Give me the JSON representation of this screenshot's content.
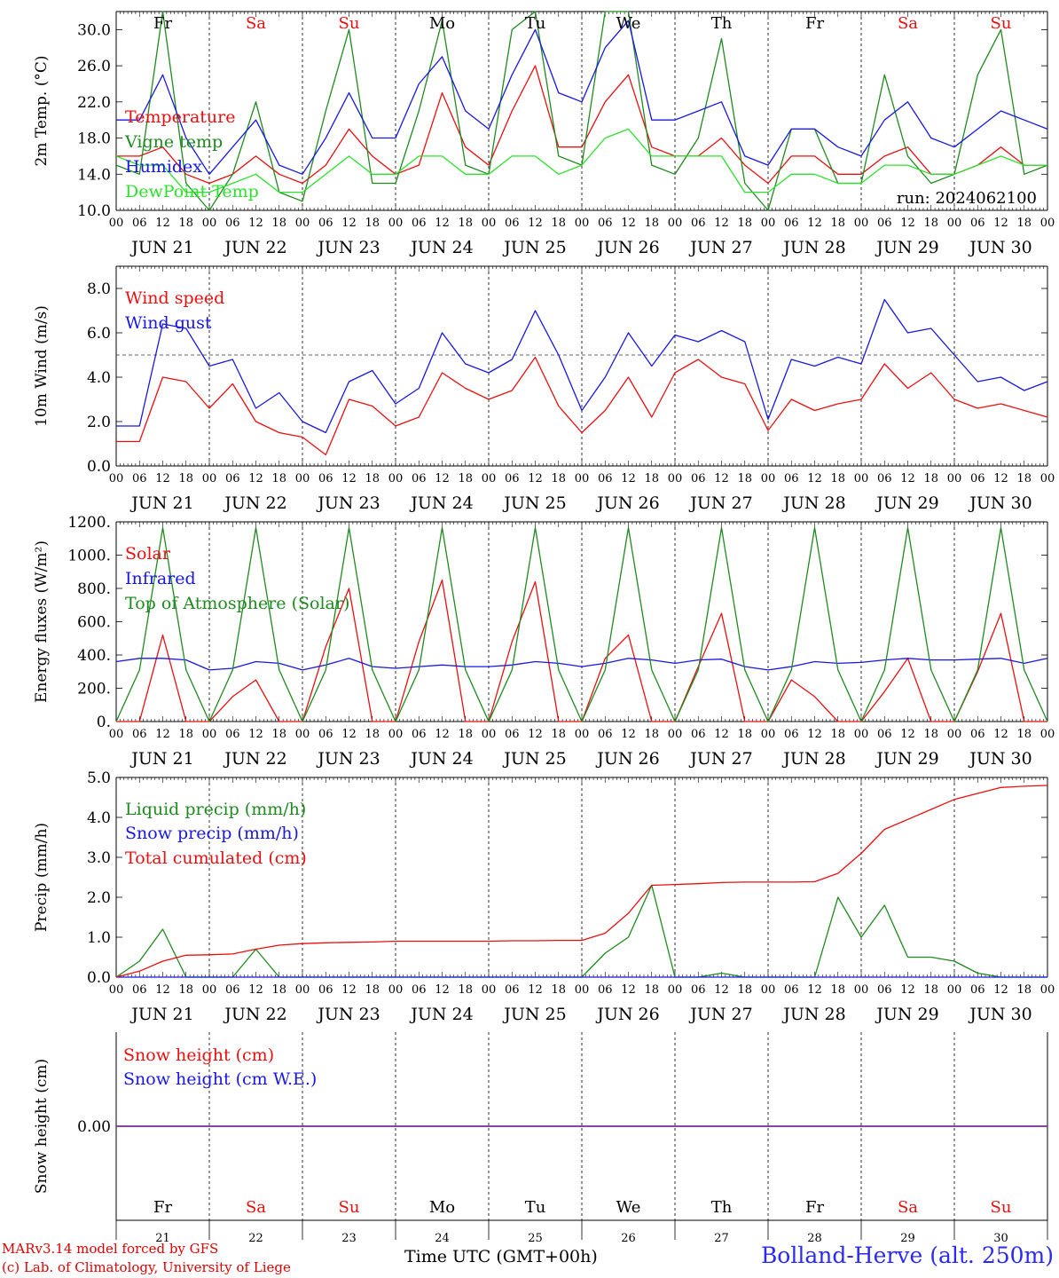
{
  "colors": {
    "red": "#e81010",
    "green": "#1f8a1f",
    "blue": "#1818e0",
    "lightgreen": "#2ee02e",
    "purple": "#7a2a9a",
    "weekend": "#e81010",
    "weekday": "#000000"
  },
  "days": {
    "top_labels": [
      "Fr",
      "Sa",
      "Su",
      "Mo",
      "Tu",
      "We",
      "Th",
      "Fr",
      "Sa",
      "Su"
    ],
    "dates": [
      "JUN 21",
      "JUN 22",
      "JUN 23",
      "JUN 24",
      "JUN 25",
      "JUN 26",
      "JUN 27",
      "JUN 28",
      "JUN 29",
      "JUN 30"
    ],
    "day_numbers": [
      "21",
      "22",
      "23",
      "24",
      "25",
      "26",
      "27",
      "28",
      "29",
      "30"
    ],
    "weekend": [
      false,
      true,
      true,
      false,
      false,
      false,
      false,
      false,
      true,
      true
    ],
    "hour_ticks": [
      "00",
      "06",
      "12",
      "18"
    ],
    "end_tick": "00"
  },
  "footer": {
    "credit_line1": "MARv3.14 model forced by GFS",
    "credit_line2": "(c) Lab. of Climatology, University of Liege",
    "time_axis_label": "Time UTC (GMT+00h)",
    "station": "Bolland-Herve (alt. 250m)"
  },
  "chart_data": [
    {
      "type": "line",
      "ylabel": "2m Temp. (°C)",
      "ylim": [
        10,
        32
      ],
      "yticks": [
        "10.0",
        "14.0",
        "18.0",
        "22.0",
        "26.0",
        "30.0"
      ],
      "annotation": "run: 2024062100",
      "x": "hours since Jun 21 00 UTC, every 6h",
      "series": [
        {
          "name": "Temperature",
          "color": "red",
          "values": [
            16,
            16,
            17,
            14,
            13,
            14,
            16,
            14,
            13,
            15,
            19,
            16,
            14,
            15,
            23,
            17,
            15,
            21,
            26,
            17,
            17,
            22,
            25,
            17,
            16,
            16,
            18,
            15,
            13,
            16,
            16,
            14,
            14,
            16,
            17,
            14,
            14,
            15,
            17,
            15,
            15
          ]
        },
        {
          "name": "Vigne temp",
          "color": "green",
          "values": [
            15,
            14,
            32,
            13,
            10,
            14,
            22,
            12,
            11,
            21,
            30,
            13,
            13,
            21,
            31,
            15,
            14,
            30,
            32,
            16,
            15,
            32,
            32,
            15,
            14,
            18,
            29,
            13,
            10,
            19,
            19,
            13,
            13,
            25,
            16,
            13,
            14,
            25,
            30,
            14,
            15
          ]
        },
        {
          "name": "Humidex",
          "color": "blue",
          "values": [
            20,
            20,
            25,
            18,
            14,
            17,
            20,
            15,
            14,
            18,
            23,
            18,
            18,
            24,
            27,
            21,
            19,
            25,
            30,
            23,
            22,
            28,
            31,
            20,
            20,
            21,
            22,
            16,
            15,
            19,
            19,
            17,
            16,
            20,
            22,
            18,
            17,
            19,
            21,
            20,
            19
          ]
        },
        {
          "name": "DewPoint Temp",
          "color": "lightgreen",
          "values": [
            16,
            15,
            15,
            12,
            12,
            13,
            14,
            12,
            12,
            14,
            16,
            14,
            14,
            16,
            16,
            14,
            14,
            16,
            16,
            14,
            15,
            18,
            19,
            16,
            16,
            16,
            16,
            12,
            12,
            14,
            14,
            13,
            13,
            15,
            15,
            14,
            14,
            15,
            16,
            15,
            15
          ]
        }
      ]
    },
    {
      "type": "line",
      "ylabel": "10m Wind (m/s)",
      "ylim": [
        0,
        9
      ],
      "yticks": [
        "0.0",
        "2.0",
        "4.0",
        "6.0",
        "8.0"
      ],
      "dashed_line": 5.0,
      "series": [
        {
          "name": "Wind speed",
          "color": "red",
          "values": [
            1.1,
            1.1,
            4.0,
            3.8,
            2.6,
            3.7,
            2.0,
            1.5,
            1.3,
            0.5,
            3.0,
            2.7,
            1.8,
            2.2,
            4.2,
            3.5,
            3.0,
            3.4,
            4.9,
            2.7,
            1.5,
            2.5,
            4.0,
            2.2,
            4.2,
            4.8,
            4.0,
            3.7,
            1.6,
            3.0,
            2.5,
            2.8,
            3.0,
            4.6,
            3.5,
            4.2,
            3.0,
            2.6,
            2.8,
            2.5,
            2.2
          ]
        },
        {
          "name": "Wind gust",
          "color": "blue",
          "values": [
            1.8,
            1.8,
            6.4,
            6.2,
            4.5,
            4.8,
            2.6,
            3.3,
            2.0,
            1.5,
            3.8,
            4.3,
            2.8,
            3.5,
            6.0,
            4.6,
            4.2,
            4.8,
            7.0,
            5.0,
            2.5,
            4.0,
            6.0,
            4.5,
            5.9,
            5.6,
            6.1,
            5.6,
            2.1,
            4.8,
            4.5,
            4.9,
            4.6,
            7.5,
            6.0,
            6.2,
            5.0,
            3.8,
            4.0,
            3.4,
            3.8
          ]
        }
      ]
    },
    {
      "type": "line",
      "ylabel": "Energy fluxes (W/m²)",
      "ylim": [
        0,
        1200
      ],
      "yticks": [
        "0.",
        "200.",
        "400.",
        "600.",
        "800.",
        "1000.",
        "1200."
      ],
      "series": [
        {
          "name": "Solar",
          "color": "red",
          "values": [
            0,
            0,
            520,
            0,
            0,
            150,
            250,
            0,
            0,
            450,
            800,
            0,
            0,
            480,
            850,
            0,
            0,
            480,
            840,
            0,
            0,
            380,
            520,
            0,
            0,
            330,
            650,
            0,
            0,
            250,
            150,
            0,
            0,
            180,
            380,
            0,
            0,
            300,
            650,
            0,
            0
          ]
        },
        {
          "name": "Infrared",
          "color": "blue",
          "values": [
            360,
            380,
            380,
            370,
            310,
            320,
            360,
            350,
            310,
            340,
            380,
            330,
            320,
            330,
            340,
            330,
            330,
            340,
            360,
            350,
            330,
            350,
            380,
            370,
            350,
            370,
            375,
            330,
            310,
            330,
            360,
            350,
            355,
            370,
            380,
            370,
            370,
            375,
            380,
            350,
            380
          ]
        },
        {
          "name": "Top of Atmosphere (Solar)",
          "color": "green",
          "values": [
            0,
            310,
            1165,
            310,
            0,
            310,
            1165,
            310,
            0,
            310,
            1165,
            310,
            0,
            310,
            1165,
            310,
            0,
            310,
            1165,
            310,
            0,
            310,
            1165,
            310,
            0,
            310,
            1165,
            310,
            0,
            310,
            1165,
            310,
            0,
            310,
            1165,
            310,
            0,
            310,
            1165,
            310,
            0
          ]
        }
      ]
    },
    {
      "type": "line",
      "ylabel": "Precip (mm/h)",
      "ylim": [
        0,
        5
      ],
      "yticks": [
        "0.0",
        "1.0",
        "2.0",
        "3.0",
        "4.0",
        "5.0"
      ],
      "series": [
        {
          "name": "Liquid precip (mm/h)",
          "color": "green",
          "values": [
            0,
            0.4,
            1.2,
            0,
            0,
            0,
            0.7,
            0,
            0,
            0,
            0,
            0,
            0,
            0,
            0,
            0,
            0,
            0,
            0,
            0,
            0,
            0.6,
            1.0,
            2.3,
            0,
            0,
            0.1,
            0,
            0,
            0,
            0,
            2.0,
            1.0,
            1.8,
            0.5,
            0.5,
            0.4,
            0.1,
            0,
            0,
            0
          ]
        },
        {
          "name": "Snow precip (mm/h)",
          "color": "blue",
          "values": [
            0,
            0,
            0,
            0,
            0,
            0,
            0,
            0,
            0,
            0,
            0,
            0,
            0,
            0,
            0,
            0,
            0,
            0,
            0,
            0,
            0,
            0,
            0,
            0,
            0,
            0,
            0,
            0,
            0,
            0,
            0,
            0,
            0,
            0,
            0,
            0,
            0,
            0,
            0,
            0,
            0
          ]
        },
        {
          "name": "Total cumulated (cm)",
          "color": "red",
          "values": [
            0,
            0.15,
            0.4,
            0.55,
            0.56,
            0.58,
            0.7,
            0.8,
            0.84,
            0.86,
            0.87,
            0.88,
            0.9,
            0.9,
            0.9,
            0.9,
            0.9,
            0.91,
            0.91,
            0.92,
            0.92,
            1.1,
            1.6,
            2.3,
            2.32,
            2.34,
            2.37,
            2.38,
            2.38,
            2.38,
            2.39,
            2.6,
            3.1,
            3.7,
            3.95,
            4.2,
            4.45,
            4.6,
            4.75,
            4.78,
            4.8
          ]
        }
      ]
    },
    {
      "type": "line",
      "ylabel": "Snow height (cm)",
      "ylim": [
        -1,
        1
      ],
      "yticks": [
        "0.00"
      ],
      "series": [
        {
          "name": "Snow height (cm)",
          "color": "red",
          "values": [
            0,
            0
          ]
        },
        {
          "name": "Snow height (cm W.E.)",
          "color": "blue",
          "values": [
            0,
            0
          ]
        }
      ]
    }
  ]
}
